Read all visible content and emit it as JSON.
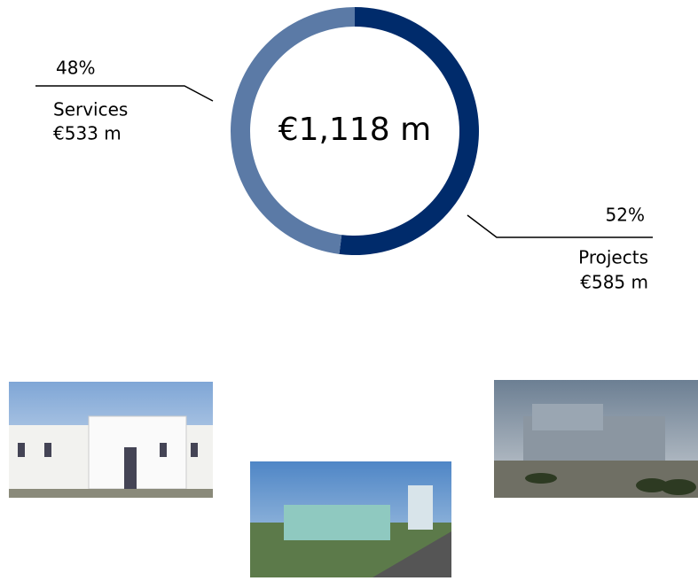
{
  "chart_data": {
    "type": "donut",
    "total_label": "€1,118 m",
    "categories": [
      "Services",
      "Projects"
    ],
    "values": [
      48,
      52
    ],
    "value_labels": [
      "48%",
      "52%"
    ],
    "amount_labels": [
      "€533 m",
      "€585 m"
    ],
    "colors": [
      "#5b7aa6",
      "#002b6b"
    ]
  }
}
